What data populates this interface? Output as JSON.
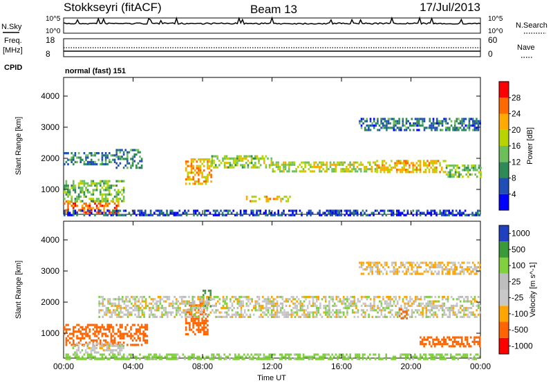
{
  "header": {
    "station": "Stokkseyri (fitACF)",
    "beam": "Beam 13",
    "date": "17/Jul/2013"
  },
  "nsky_panel": {
    "left_label": "N.Sky",
    "right_label": "N.Search",
    "top_tick": "10^5",
    "bottom_tick": "10^0"
  },
  "freq_panel": {
    "left_label_line1": "Freq.",
    "left_label_line2": "[MHz]",
    "left_ticks": [
      "18",
      "8"
    ],
    "right_label": "Nave",
    "right_ticks": [
      "60",
      "0"
    ]
  },
  "cpid_panel": {
    "label": "CPID",
    "mode": "normal (fast) 151"
  },
  "colors": {
    "power_scale": [
      "#0000ff",
      "#1f4fb4",
      "#2e8b57",
      "#6cbf5a",
      "#b8d400",
      "#ffaa00",
      "#ff6a00",
      "#ff0000"
    ],
    "velocity_scale": [
      "#ff0000",
      "#ff6400",
      "#ffa500",
      "#c8c8c8",
      "#bebebe",
      "#80d040",
      "#3a9a3a",
      "#2040c0"
    ]
  },
  "chart_data": [
    {
      "type": "heatmap",
      "name": "power",
      "ylabel": "Slant Range [km]",
      "y_ticks": [
        "1000",
        "2000",
        "3000",
        "4000"
      ],
      "ylim": [
        200,
        4600
      ],
      "xlim_hours": [
        0,
        24
      ],
      "colorbar_label": "Power [dB]",
      "colorbar_ticks": [
        "4",
        "8",
        "12",
        "16",
        "20",
        "24",
        "28"
      ],
      "colorbar_range": [
        0,
        32
      ],
      "echo_bands": [
        {
          "start_h": 0.0,
          "end_h": 3.2,
          "range_start_km": 250,
          "range_end_km": 650,
          "power_db": 26
        },
        {
          "start_h": 0.0,
          "end_h": 3.5,
          "range_start_km": 600,
          "range_end_km": 1300,
          "power_db": 14
        },
        {
          "start_h": 0.0,
          "end_h": 3.0,
          "range_start_km": 1800,
          "range_end_km": 2200,
          "power_db": 10
        },
        {
          "start_h": 3.0,
          "end_h": 4.5,
          "range_start_km": 1700,
          "range_end_km": 2300,
          "power_db": 9
        },
        {
          "start_h": 7.0,
          "end_h": 8.5,
          "range_start_km": 1200,
          "range_end_km": 2000,
          "power_db": 22
        },
        {
          "start_h": 8.5,
          "end_h": 12.0,
          "range_start_km": 1700,
          "range_end_km": 2100,
          "power_db": 16
        },
        {
          "start_h": 10.5,
          "end_h": 13.0,
          "range_start_km": 600,
          "range_end_km": 800,
          "power_db": 20
        },
        {
          "start_h": 12.0,
          "end_h": 18.0,
          "range_start_km": 1550,
          "range_end_km": 1900,
          "power_db": 17
        },
        {
          "start_h": 18.0,
          "end_h": 22.0,
          "range_start_km": 1550,
          "range_end_km": 1950,
          "power_db": 21
        },
        {
          "start_h": 22.0,
          "end_h": 24.0,
          "range_start_km": 1400,
          "range_end_km": 1800,
          "power_db": 14
        },
        {
          "start_h": 17.0,
          "end_h": 24.0,
          "range_start_km": 2900,
          "range_end_km": 3300,
          "power_db": 8
        },
        {
          "start_h": 0.0,
          "end_h": 24.0,
          "range_start_km": 200,
          "range_end_km": 350,
          "power_db": 5
        }
      ]
    },
    {
      "type": "heatmap",
      "name": "velocity",
      "ylabel": "Slant Range [km]",
      "y_ticks": [
        "1000",
        "2000",
        "3000",
        "4000"
      ],
      "ylim": [
        200,
        4600
      ],
      "xlim_hours": [
        0,
        24
      ],
      "xlabel": "Time UT",
      "x_ticks": [
        "00:00",
        "04:00",
        "08:00",
        "12:00",
        "16:00",
        "20:00",
        "00:00"
      ],
      "colorbar_label": "Velocity [m s^-1]",
      "colorbar_ticks": [
        "-1000",
        "-500",
        "-100",
        "-25",
        "25",
        "100",
        "500",
        "1000"
      ],
      "echo_bands": [
        {
          "start_h": 0.0,
          "end_h": 4.8,
          "range_start_km": 600,
          "range_end_km": 1300,
          "velocity": -300
        },
        {
          "start_h": 0.5,
          "end_h": 3.5,
          "range_start_km": 400,
          "range_end_km": 700,
          "velocity": 0
        },
        {
          "start_h": 7.0,
          "end_h": 8.3,
          "range_start_km": 1000,
          "range_end_km": 2000,
          "velocity": -200
        },
        {
          "start_h": 8.0,
          "end_h": 8.5,
          "range_start_km": 1900,
          "range_end_km": 2400,
          "velocity": 150
        },
        {
          "start_h": 2.0,
          "end_h": 24.0,
          "range_start_km": 1500,
          "range_end_km": 2200,
          "velocity": 0
        },
        {
          "start_h": 19.3,
          "end_h": 19.8,
          "range_start_km": 1500,
          "range_end_km": 1800,
          "velocity": -250
        },
        {
          "start_h": 20.5,
          "end_h": 24.0,
          "range_start_km": 600,
          "range_end_km": 900,
          "velocity": -150
        },
        {
          "start_h": 17.0,
          "end_h": 24.0,
          "range_start_km": 2900,
          "range_end_km": 3300,
          "velocity": -30
        },
        {
          "start_h": 0.0,
          "end_h": 24.0,
          "range_start_km": 200,
          "range_end_km": 350,
          "velocity": 60
        }
      ]
    }
  ]
}
